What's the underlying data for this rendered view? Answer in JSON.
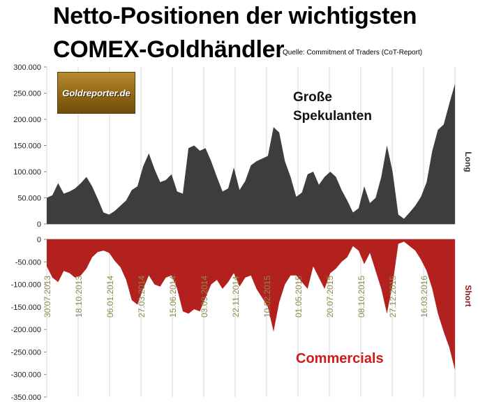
{
  "title_line1": "Netto-Positionen der wichtigsten",
  "title_line2": "COMEX-Goldhändler",
  "source": "Quelle: Commitment of Traders (CoT-Report)",
  "logo_text": "Goldreporter.de",
  "colors": {
    "long_fill": "#3d3d3d",
    "short_fill": "#b3211f",
    "long_label": "#333333",
    "short_label": "#8b1a1a"
  },
  "chart_data": [
    {
      "type": "area",
      "label": "Große Spekulanten",
      "side_label": "Long",
      "ylim": [
        0,
        300000
      ],
      "yticks": [
        0,
        50000,
        100000,
        150000,
        200000,
        250000,
        300000
      ],
      "ytick_labels": [
        "0",
        "50.000",
        "100.000",
        "150.000",
        "200.000",
        "250.000",
        "300.000"
      ],
      "x_index": [
        0,
        2,
        4,
        6,
        8,
        10,
        12,
        14,
        16,
        18,
        20,
        22,
        24,
        26,
        28,
        30,
        32,
        34,
        36,
        38,
        40,
        42,
        44,
        46,
        48,
        50,
        52,
        54,
        56,
        58,
        60,
        62,
        64,
        66,
        68,
        70,
        72,
        74,
        76,
        78,
        80,
        82,
        84,
        86,
        88,
        90,
        92,
        94,
        96,
        98,
        100,
        102,
        104,
        106,
        108,
        110,
        112,
        114,
        116,
        118,
        120,
        122,
        124,
        126,
        128,
        130,
        132,
        134,
        136,
        138,
        140,
        142,
        144
      ],
      "values": [
        50000,
        55000,
        78000,
        58000,
        62000,
        68000,
        78000,
        90000,
        72000,
        48000,
        22000,
        18000,
        25000,
        35000,
        45000,
        65000,
        72000,
        110000,
        135000,
        105000,
        80000,
        84000,
        95000,
        62000,
        58000,
        145000,
        150000,
        140000,
        145000,
        120000,
        90000,
        62000,
        68000,
        108000,
        65000,
        82000,
        112000,
        120000,
        125000,
        130000,
        185000,
        175000,
        120000,
        90000,
        52000,
        60000,
        95000,
        100000,
        75000,
        90000,
        100000,
        90000,
        65000,
        45000,
        22000,
        30000,
        72000,
        40000,
        50000,
        90000,
        150000,
        100000,
        18000,
        10000,
        22000,
        35000,
        52000,
        80000,
        140000,
        180000,
        190000,
        230000,
        268000
      ]
    },
    {
      "type": "area",
      "label": "Commercials",
      "side_label": "Short",
      "ylim": [
        -350000,
        0
      ],
      "yticks": [
        0,
        -50000,
        -100000,
        -150000,
        -200000,
        -250000,
        -300000,
        -350000
      ],
      "ytick_labels": [
        "0",
        "-50.000",
        "-100.000",
        "-150.000",
        "-200.000",
        "-250.000",
        "-300.000",
        "-350.000"
      ],
      "x_dates": [
        "30.07.2013",
        "18.10.2013",
        "06.01.2014",
        "27.03.2014",
        "15.06.2014",
        "03.09.2014",
        "22.11.2014",
        "10.02.2015",
        "01.05.2015",
        "20.07.2015",
        "08.10.2015",
        "27.12.2015",
        "16.03.2016"
      ],
      "x_index": [
        0,
        2,
        4,
        6,
        8,
        10,
        12,
        14,
        16,
        18,
        20,
        22,
        24,
        26,
        28,
        30,
        32,
        34,
        36,
        38,
        40,
        42,
        44,
        46,
        48,
        50,
        52,
        54,
        56,
        58,
        60,
        62,
        64,
        66,
        68,
        70,
        72,
        74,
        76,
        78,
        80,
        82,
        84,
        86,
        88,
        90,
        92,
        94,
        96,
        98,
        100,
        102,
        104,
        106,
        108,
        110,
        112,
        114,
        116,
        118,
        120,
        122,
        124,
        126,
        128,
        130,
        132,
        134,
        136,
        138,
        140,
        142,
        144
      ],
      "values": [
        -60000,
        -85000,
        -95000,
        -70000,
        -75000,
        -85000,
        -80000,
        -65000,
        -40000,
        -28000,
        -25000,
        -30000,
        -48000,
        -62000,
        -90000,
        -135000,
        -145000,
        -110000,
        -80000,
        -100000,
        -105000,
        -85000,
        -80000,
        -110000,
        -160000,
        -165000,
        -155000,
        -160000,
        -130000,
        -100000,
        -90000,
        -110000,
        -95000,
        -75000,
        -105000,
        -85000,
        -80000,
        -110000,
        -130000,
        -150000,
        -205000,
        -140000,
        -100000,
        -80000,
        -80000,
        -95000,
        -110000,
        -60000,
        -85000,
        -110000,
        -75000,
        -65000,
        -50000,
        -40000,
        -15000,
        -25000,
        -55000,
        -30000,
        -70000,
        -110000,
        -165000,
        -100000,
        -10000,
        -5000,
        -15000,
        -25000,
        -45000,
        -70000,
        -110000,
        -165000,
        -205000,
        -240000,
        -290000
      ]
    }
  ]
}
